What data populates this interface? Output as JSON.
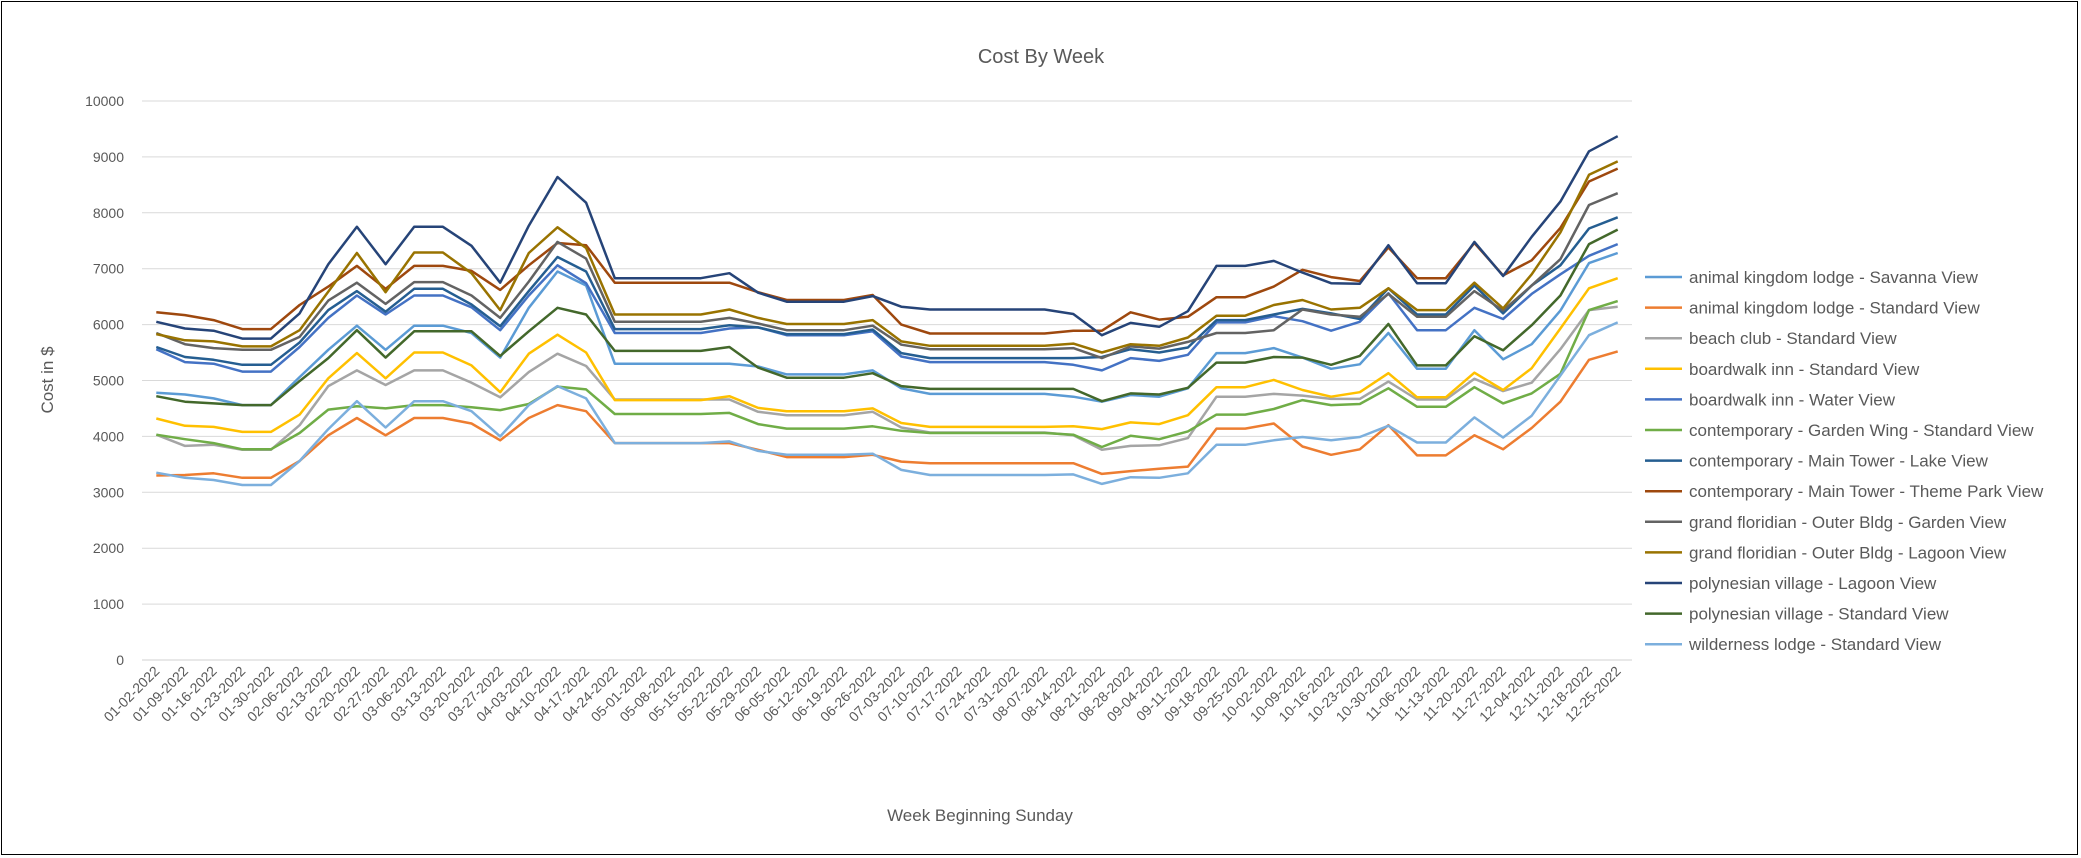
{
  "chart_data": {
    "type": "line",
    "title": "Cost By Week",
    "xlabel": "Week Beginning Sunday",
    "ylabel": "Cost in $",
    "ylim": [
      0,
      10000
    ],
    "yticks": [
      "0",
      "1000",
      "2000",
      "3000",
      "4000",
      "5000",
      "6000",
      "7000",
      "8000",
      "9000",
      "10000"
    ],
    "grid": true,
    "legend": "right",
    "x": [
      "01-02-2022",
      "01-09-2022",
      "01-16-2022",
      "01-23-2022",
      "01-30-2022",
      "02-06-2022",
      "02-13-2022",
      "02-20-2022",
      "02-27-2022",
      "03-06-2022",
      "03-13-2022",
      "03-20-2022",
      "03-27-2022",
      "04-03-2022",
      "04-10-2022",
      "04-17-2022",
      "04-24-2022",
      "05-01-2022",
      "05-08-2022",
      "05-15-2022",
      "05-22-2022",
      "05-29-2022",
      "06-05-2022",
      "06-12-2022",
      "06-19-2022",
      "06-26-2022",
      "07-03-2022",
      "07-10-2022",
      "07-17-2022",
      "07-24-2022",
      "07-31-2022",
      "08-07-2022",
      "08-14-2022",
      "08-21-2022",
      "08-28-2022",
      "09-04-2022",
      "09-11-2022",
      "09-18-2022",
      "09-25-2022",
      "10-02-2022",
      "10-09-2022",
      "10-16-2022",
      "10-23-2022",
      "10-30-2022",
      "11-06-2022",
      "11-13-2022",
      "11-20-2022",
      "11-27-2022",
      "12-04-2022",
      "12-11-2022",
      "12-18-2022",
      "12-25-2022"
    ],
    "series": [
      {
        "name": "animal kingdom lodge - Savanna View",
        "color": "#5B9BD5",
        "values": [
          4780,
          4750,
          4680,
          4560,
          4560,
          5060,
          5550,
          5980,
          5550,
          5980,
          5980,
          5850,
          5410,
          6300,
          6950,
          6700,
          5300,
          5300,
          5300,
          5300,
          5300,
          5250,
          5110,
          5110,
          5110,
          5180,
          4860,
          4760,
          4760,
          4760,
          4760,
          4760,
          4710,
          4620,
          4740,
          4710,
          4860,
          5490,
          5490,
          5580,
          5410,
          5210,
          5290,
          5850,
          5210,
          5210,
          5900,
          5380,
          5650,
          6250,
          7100,
          7280
        ]
      },
      {
        "name": "animal kingdom lodge - Standard View",
        "color": "#ED7D31",
        "values": [
          3300,
          3310,
          3340,
          3260,
          3260,
          3560,
          4020,
          4330,
          4020,
          4330,
          4330,
          4230,
          3930,
          4330,
          4560,
          4450,
          3880,
          3880,
          3880,
          3880,
          3880,
          3760,
          3630,
          3630,
          3630,
          3670,
          3550,
          3520,
          3520,
          3520,
          3520,
          3520,
          3520,
          3330,
          3380,
          3420,
          3460,
          4140,
          4140,
          4230,
          3820,
          3670,
          3770,
          4200,
          3660,
          3660,
          4020,
          3770,
          4150,
          4620,
          5370,
          5520
        ]
      },
      {
        "name": "beach club - Standard View",
        "color": "#A5A5A5",
        "values": [
          4030,
          3830,
          3850,
          3760,
          3760,
          4200,
          4900,
          5180,
          4920,
          5180,
          5180,
          4960,
          4700,
          5150,
          5480,
          5260,
          4660,
          4660,
          4660,
          4660,
          4660,
          4440,
          4380,
          4380,
          4380,
          4440,
          4160,
          4070,
          4070,
          4070,
          4070,
          4070,
          4020,
          3760,
          3830,
          3840,
          3970,
          4710,
          4710,
          4760,
          4730,
          4670,
          4670,
          4980,
          4660,
          4660,
          5030,
          4810,
          4960,
          5560,
          6260,
          6320
        ]
      },
      {
        "name": "boardwalk inn - Standard View",
        "color": "#FFC000",
        "values": [
          4320,
          4190,
          4170,
          4080,
          4080,
          4390,
          5040,
          5490,
          5040,
          5500,
          5500,
          5270,
          4790,
          5480,
          5820,
          5500,
          4650,
          4650,
          4650,
          4650,
          4720,
          4510,
          4450,
          4450,
          4450,
          4500,
          4240,
          4170,
          4170,
          4170,
          4170,
          4170,
          4180,
          4130,
          4250,
          4220,
          4380,
          4880,
          4880,
          5010,
          4830,
          4710,
          4790,
          5130,
          4700,
          4700,
          5140,
          4830,
          5220,
          5930,
          6650,
          6830
        ]
      },
      {
        "name": "boardwalk inn - Water View",
        "color": "#4472C4",
        "values": [
          5560,
          5330,
          5300,
          5160,
          5160,
          5600,
          6120,
          6520,
          6180,
          6520,
          6520,
          6310,
          5900,
          6520,
          7060,
          6740,
          5850,
          5850,
          5850,
          5850,
          5930,
          5950,
          5810,
          5810,
          5810,
          5880,
          5430,
          5330,
          5330,
          5330,
          5330,
          5330,
          5280,
          5180,
          5400,
          5350,
          5460,
          6040,
          6040,
          6150,
          6060,
          5890,
          6050,
          6560,
          5900,
          5900,
          6300,
          6100,
          6550,
          6900,
          7230,
          7440
        ]
      },
      {
        "name": "contemporary - Garden Wing - Standard View",
        "color": "#70AD47",
        "values": [
          4030,
          3950,
          3880,
          3770,
          3770,
          4060,
          4480,
          4540,
          4500,
          4560,
          4560,
          4520,
          4470,
          4580,
          4890,
          4840,
          4400,
          4400,
          4400,
          4400,
          4420,
          4220,
          4140,
          4140,
          4140,
          4180,
          4100,
          4060,
          4060,
          4060,
          4060,
          4060,
          4030,
          3810,
          4010,
          3950,
          4090,
          4390,
          4390,
          4490,
          4650,
          4560,
          4580,
          4860,
          4530,
          4530,
          4880,
          4590,
          4770,
          5120,
          6260,
          6420
        ]
      },
      {
        "name": "contemporary - Main Tower - Lake View",
        "color": "#255E91",
        "values": [
          5600,
          5420,
          5370,
          5280,
          5280,
          5680,
          6260,
          6600,
          6230,
          6640,
          6640,
          6360,
          5970,
          6600,
          7210,
          6950,
          5920,
          5920,
          5920,
          5920,
          5990,
          5950,
          5830,
          5830,
          5830,
          5910,
          5490,
          5400,
          5400,
          5400,
          5400,
          5400,
          5400,
          5420,
          5560,
          5500,
          5590,
          6080,
          6080,
          6180,
          6280,
          6200,
          6100,
          6650,
          6180,
          6180,
          6700,
          6200,
          6700,
          7060,
          7720,
          7920
        ]
      },
      {
        "name": "contemporary - Main Tower - Theme Park View",
        "color": "#9E480E",
        "values": [
          6220,
          6170,
          6080,
          5920,
          5920,
          6350,
          6680,
          7050,
          6640,
          7050,
          7050,
          6960,
          6620,
          7060,
          7460,
          7420,
          6750,
          6750,
          6750,
          6750,
          6750,
          6580,
          6440,
          6440,
          6440,
          6530,
          6000,
          5840,
          5840,
          5840,
          5840,
          5840,
          5890,
          5890,
          6220,
          6090,
          6140,
          6490,
          6490,
          6680,
          6980,
          6850,
          6780,
          7380,
          6830,
          6830,
          7460,
          6880,
          7150,
          7730,
          8560,
          8790
        ]
      },
      {
        "name": "grand floridian - Outer Bldg - Garden View",
        "color": "#636363",
        "values": [
          5850,
          5650,
          5580,
          5550,
          5550,
          5780,
          6430,
          6750,
          6370,
          6760,
          6760,
          6520,
          6120,
          6770,
          7480,
          7180,
          6050,
          6050,
          6050,
          6050,
          6120,
          6020,
          5900,
          5900,
          5900,
          5980,
          5640,
          5560,
          5560,
          5560,
          5560,
          5560,
          5580,
          5400,
          5610,
          5570,
          5690,
          5850,
          5850,
          5900,
          6270,
          6180,
          6140,
          6550,
          6140,
          6140,
          6600,
          6250,
          6700,
          7170,
          8140,
          8350
        ]
      },
      {
        "name": "grand floridian - Outer Bldg - Lagoon View",
        "color": "#997300",
        "values": [
          5830,
          5720,
          5700,
          5610,
          5610,
          5900,
          6590,
          7280,
          6580,
          7290,
          7290,
          6920,
          6260,
          7280,
          7740,
          7370,
          6180,
          6180,
          6180,
          6180,
          6270,
          6120,
          6010,
          6010,
          6010,
          6080,
          5700,
          5620,
          5620,
          5620,
          5620,
          5620,
          5660,
          5500,
          5650,
          5620,
          5770,
          6160,
          6160,
          6350,
          6440,
          6270,
          6300,
          6650,
          6260,
          6260,
          6750,
          6290,
          6900,
          7650,
          8680,
          8920
        ]
      },
      {
        "name": "polynesian village - Lagoon View",
        "color": "#264478",
        "values": [
          6050,
          5930,
          5890,
          5750,
          5750,
          6200,
          7080,
          7750,
          7080,
          7750,
          7750,
          7410,
          6750,
          7770,
          8640,
          8180,
          6830,
          6830,
          6830,
          6830,
          6920,
          6570,
          6410,
          6410,
          6410,
          6510,
          6320,
          6270,
          6270,
          6270,
          6270,
          6270,
          6190,
          5810,
          6030,
          5960,
          6240,
          7050,
          7050,
          7140,
          6930,
          6740,
          6730,
          7420,
          6740,
          6740,
          7480,
          6870,
          7570,
          8200,
          9100,
          9370
        ]
      },
      {
        "name": "polynesian village - Standard View",
        "color": "#43682B",
        "values": [
          4720,
          4620,
          4590,
          4560,
          4560,
          4990,
          5400,
          5900,
          5410,
          5880,
          5880,
          5880,
          5440,
          5880,
          6300,
          6180,
          5530,
          5530,
          5530,
          5530,
          5600,
          5230,
          5050,
          5050,
          5050,
          5130,
          4900,
          4850,
          4850,
          4850,
          4850,
          4850,
          4850,
          4630,
          4770,
          4750,
          4870,
          5320,
          5320,
          5420,
          5410,
          5280,
          5440,
          6010,
          5270,
          5270,
          5790,
          5540,
          5990,
          6520,
          7440,
          7700
        ]
      },
      {
        "name": "wilderness lodge - Standard View",
        "color": "#7CAFDD",
        "values": [
          3350,
          3260,
          3220,
          3130,
          3130,
          3560,
          4130,
          4630,
          4160,
          4630,
          4630,
          4450,
          4000,
          4560,
          4900,
          4680,
          3880,
          3880,
          3880,
          3880,
          3910,
          3740,
          3670,
          3670,
          3670,
          3690,
          3400,
          3310,
          3310,
          3310,
          3310,
          3310,
          3320,
          3150,
          3270,
          3260,
          3340,
          3850,
          3850,
          3930,
          3990,
          3930,
          3990,
          4190,
          3890,
          3890,
          4340,
          3980,
          4370,
          5090,
          5810,
          6040
        ]
      }
    ]
  }
}
